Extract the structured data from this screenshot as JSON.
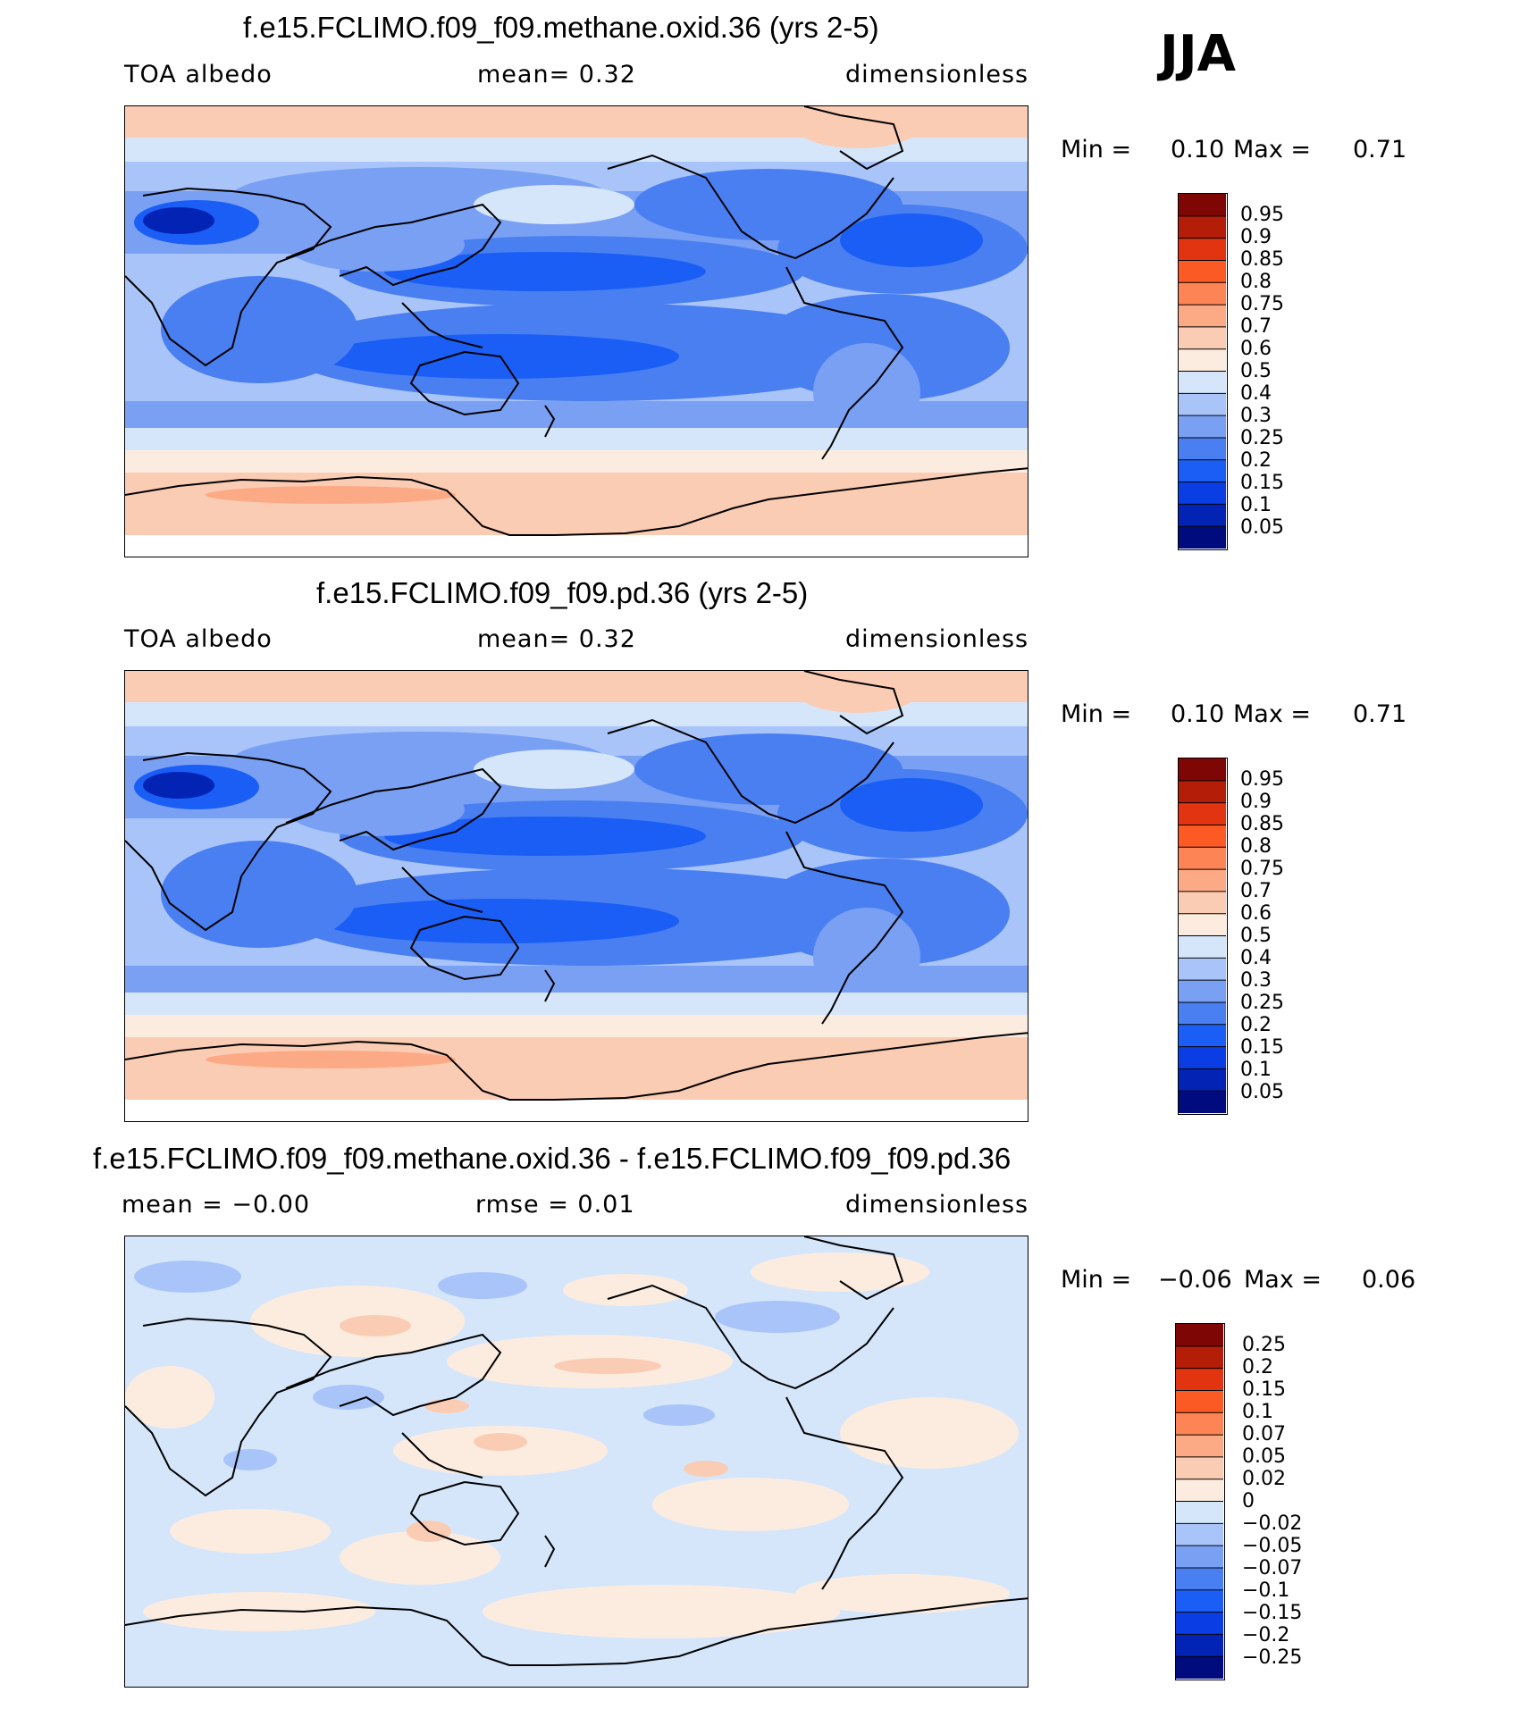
{
  "season": "JJA",
  "panels": [
    {
      "id": "methane",
      "title": "f.e15.FCLIMO.f09_f09.methane.oxid.36 (yrs 2-5)",
      "left_label": "TOA  albedo",
      "center_label": "mean=     0.32",
      "right_label": "dimensionless",
      "min_label": "Min =",
      "min_value": "0.10",
      "max_label": "Max =",
      "max_value": "0.71",
      "colorbar": {
        "colors": [
          "#000c7e",
          "#0223b4",
          "#0a3ee4",
          "#1a5ef6",
          "#4a7ff2",
          "#7aa0f4",
          "#a9c4f9",
          "#d5e6fb",
          "#fcece0",
          "#fbccb4",
          "#fcaa85",
          "#fd8454",
          "#fb5a24",
          "#e23410",
          "#b41e08",
          "#7e0604"
        ],
        "labels": [
          "0.05",
          "0.1",
          "0.15",
          "0.2",
          "0.25",
          "0.3",
          "0.4",
          "0.5",
          "0.6",
          "0.7",
          "0.75",
          "0.8",
          "0.85",
          "0.9",
          "0.95"
        ]
      }
    },
    {
      "id": "pd",
      "title": "f.e15.FCLIMO.f09_f09.pd.36 (yrs 2-5)",
      "left_label": "TOA  albedo",
      "center_label": "mean=     0.32",
      "right_label": "dimensionless",
      "min_label": "Min =",
      "min_value": "0.10",
      "max_label": "Max =",
      "max_value": "0.71",
      "colorbar": {
        "colors": [
          "#000c7e",
          "#0223b4",
          "#0a3ee4",
          "#1a5ef6",
          "#4a7ff2",
          "#7aa0f4",
          "#a9c4f9",
          "#d5e6fb",
          "#fcece0",
          "#fbccb4",
          "#fcaa85",
          "#fd8454",
          "#fb5a24",
          "#e23410",
          "#b41e08",
          "#7e0604"
        ],
        "labels": [
          "0.05",
          "0.1",
          "0.15",
          "0.2",
          "0.25",
          "0.3",
          "0.4",
          "0.5",
          "0.6",
          "0.7",
          "0.75",
          "0.8",
          "0.85",
          "0.9",
          "0.95"
        ]
      }
    },
    {
      "id": "diff",
      "title": "f.e15.FCLIMO.f09_f09.methane.oxid.36 - f.e15.FCLIMO.f09_f09.pd.36",
      "left_label": "mean =   −0.00",
      "center_label": "rmse =     0.01",
      "right_label": "dimensionless",
      "min_label": "Min =",
      "min_value": "−0.06",
      "max_label": "Max =",
      "max_value": "0.06",
      "colorbar": {
        "colors": [
          "#000c7e",
          "#0223b4",
          "#0a3ee4",
          "#1a5ef6",
          "#4a7ff2",
          "#7aa0f4",
          "#a9c4f9",
          "#d5e6fb",
          "#fcece0",
          "#fbccb4",
          "#fcaa85",
          "#fd8454",
          "#fb5a24",
          "#e23410",
          "#b41e08",
          "#7e0604"
        ],
        "labels": [
          "−0.25",
          "−0.2",
          "−0.15",
          "−0.1",
          "−0.07",
          "−0.05",
          "−0.02",
          "0",
          "0.02",
          "0.05",
          "0.07",
          "0.1",
          "0.15",
          "0.2",
          "0.25"
        ]
      }
    }
  ]
}
